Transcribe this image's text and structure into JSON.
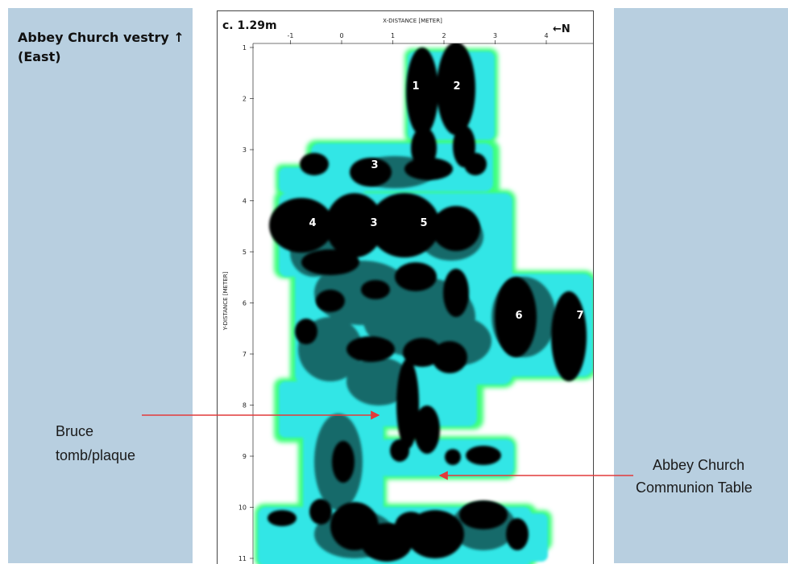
{
  "left_label": {
    "line1": "Abbey Church vestry ↑",
    "line2": "(East)"
  },
  "figure": {
    "depth_label": "c. 1.29m",
    "x_axis_title": "X-DISTANCE [METER]",
    "y_axis_title": "Y-DISTANCE [METER]",
    "north_indicator": "←N",
    "x_ticks": [
      "-1",
      "0",
      "1",
      "2",
      "3",
      "4"
    ],
    "y_ticks": [
      "1",
      "2",
      "3",
      "4",
      "5",
      "6",
      "7",
      "8",
      "9",
      "10",
      "11"
    ],
    "markers": [
      "1",
      "2",
      "3",
      "3",
      "4",
      "5",
      "6",
      "7"
    ]
  },
  "callouts": {
    "bruce": {
      "line1": "Bruce",
      "line2": "tomb/plaque"
    },
    "communion": {
      "line1": "Abbey Church",
      "line2": "Communion Table"
    }
  },
  "colors": {
    "panel": "#b8cfe0",
    "arrow": "#e23a3a",
    "anomaly_dark": "#000000",
    "anomaly_mid": "#136a6a",
    "anomaly_cyan": "#33e6e6",
    "anomaly_green": "#3cff7a"
  }
}
